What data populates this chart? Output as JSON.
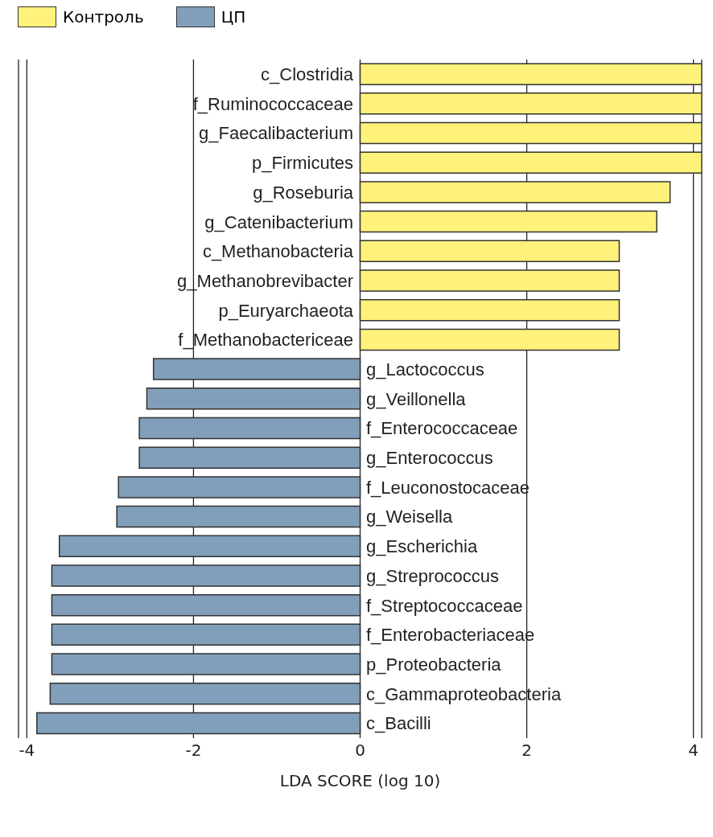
{
  "chart_data": {
    "type": "bar",
    "orientation": "horizontal",
    "xlabel": "LDA SCORE (log 10)",
    "categories": [
      "c_Clostridia",
      "f_Ruminococcaceae",
      "g_Faecalibacterium",
      "p_Firmicutes",
      "g_Roseburia",
      "g_Catenibacterium",
      "c_Methanobacteria",
      "g_Methanobrevibacter",
      "p_Euryarchaeota",
      "f_Methanobactericeae",
      "g_Lactococcus",
      "g_Veillonella",
      "f_Enterococcaceae",
      "g_Enterococcus",
      "f_Leuconostocaceae",
      "g_Weisella",
      "g_Escherichia",
      "g_Streprococcus",
      "f_Streptococcaceae",
      "f_Enterobacteriaceae",
      "p_Proteobacteria",
      "c_Gammaproteobacteria",
      "c_Bacilli"
    ],
    "series": [
      {
        "name": "Контроль",
        "color": "#fff27a",
        "values": [
          4.1,
          4.1,
          4.1,
          4.1,
          3.72,
          3.56,
          3.11,
          3.11,
          3.11,
          3.11,
          null,
          null,
          null,
          null,
          null,
          null,
          null,
          null,
          null,
          null,
          null,
          null,
          null
        ]
      },
      {
        "name": "ЦП",
        "color": "#819fba",
        "values": [
          null,
          null,
          null,
          null,
          null,
          null,
          null,
          null,
          null,
          null,
          -2.48,
          -2.56,
          -2.65,
          -2.65,
          -2.9,
          -2.92,
          -3.61,
          -3.7,
          -3.7,
          -3.7,
          -3.7,
          -3.72,
          -3.88
        ]
      }
    ],
    "xlim": [
      -4.1,
      4.1
    ],
    "xticks": [
      -4,
      -2,
      0,
      2,
      4
    ],
    "grid": "x",
    "legend": "top left"
  }
}
